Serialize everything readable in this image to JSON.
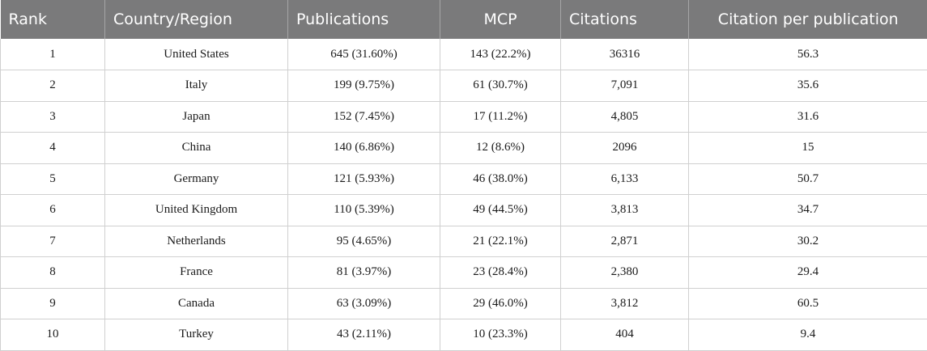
{
  "table": {
    "headers": {
      "rank": "Rank",
      "country": "Country/Region",
      "publications": "Publications",
      "mcp": "MCP",
      "citations": "Citations",
      "cpp": "Citation per publication"
    },
    "rows": [
      {
        "rank": "1",
        "country": "United States",
        "publications": "645 (31.60%)",
        "mcp": "143 (22.2%)",
        "citations": "36316",
        "cpp": "56.3"
      },
      {
        "rank": "2",
        "country": "Italy",
        "publications": "199 (9.75%)",
        "mcp": "61 (30.7%)",
        "citations": "7,091",
        "cpp": "35.6"
      },
      {
        "rank": "3",
        "country": "Japan",
        "publications": "152 (7.45%)",
        "mcp": "17 (11.2%)",
        "citations": "4,805",
        "cpp": "31.6"
      },
      {
        "rank": "4",
        "country": "China",
        "publications": "140 (6.86%)",
        "mcp": "12 (8.6%)",
        "citations": "2096",
        "cpp": "15"
      },
      {
        "rank": "5",
        "country": "Germany",
        "publications": "121 (5.93%)",
        "mcp": "46 (38.0%)",
        "citations": "6,133",
        "cpp": "50.7"
      },
      {
        "rank": "6",
        "country": "United Kingdom",
        "publications": "110 (5.39%)",
        "mcp": "49 (44.5%)",
        "citations": "3,813",
        "cpp": "34.7"
      },
      {
        "rank": "7",
        "country": "Netherlands",
        "publications": "95 (4.65%)",
        "mcp": "21 (22.1%)",
        "citations": "2,871",
        "cpp": "30.2"
      },
      {
        "rank": "8",
        "country": "France",
        "publications": "81 (3.97%)",
        "mcp": "23 (28.4%)",
        "citations": "2,380",
        "cpp": "29.4"
      },
      {
        "rank": "9",
        "country": "Canada",
        "publications": "63 (3.09%)",
        "mcp": "29 (46.0%)",
        "citations": "3,812",
        "cpp": "60.5"
      },
      {
        "rank": "10",
        "country": "Turkey",
        "publications": "43 (2.11%)",
        "mcp": "10 (23.3%)",
        "citations": "404",
        "cpp": "9.4"
      }
    ]
  }
}
